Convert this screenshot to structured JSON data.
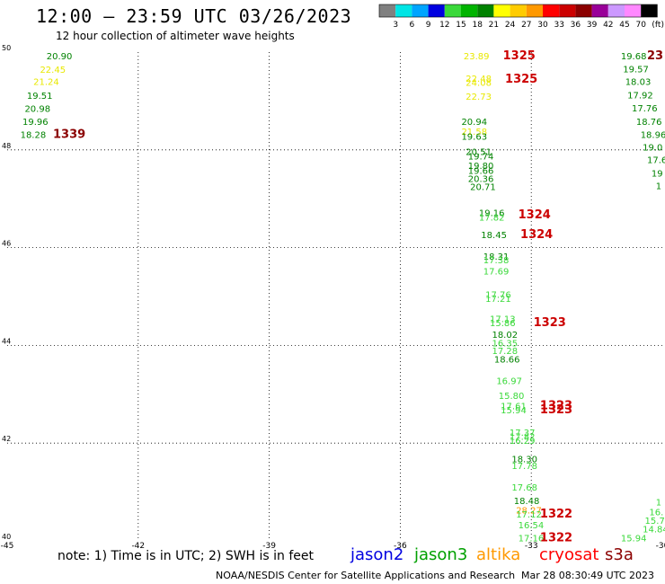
{
  "header": {
    "title": "12:00 — 23:59 UTC 03/26/2023",
    "subtitle": "12 hour collection of altimeter wave heights"
  },
  "colorbar": {
    "unit": "(ft)",
    "ticks": [
      "3",
      "6",
      "9",
      "12",
      "15",
      "18",
      "21",
      "24",
      "27",
      "30",
      "33",
      "36",
      "39",
      "42",
      "45",
      "70"
    ],
    "colors": [
      "#808080",
      "#00e5e5",
      "#00a5ff",
      "#0000e0",
      "#3ad93a",
      "#00b400",
      "#008200",
      "#ffff00",
      "#ffcc00",
      "#ff9900",
      "#ff0000",
      "#cc0000",
      "#8b0000",
      "#990099",
      "#cc99ff",
      "#ff88ff",
      "#000000"
    ]
  },
  "footer": {
    "note": "note:  1) Time is in UTC;  2) SWH is in feet",
    "satellites": [
      {
        "name": "jason2",
        "color": "#0000e0"
      },
      {
        "name": "jason3",
        "color": "#00a000"
      },
      {
        "name": "altika",
        "color": "#ff9900"
      },
      {
        "name": "cryosat",
        "color": "#ff0000"
      },
      {
        "name": "s3a",
        "color": "#8b0000"
      }
    ],
    "credit": "NOAA/NESDIS Center for Satellite Applications and Research",
    "generated": "Mar 28 08:30:49 UTC 2023"
  },
  "chart_data": {
    "type": "scatter",
    "title": "12:00 — 23:59 UTC 03/26/2023",
    "subtitle": "12 hour collection of altimeter wave heights",
    "xlim": [
      -45,
      -30
    ],
    "ylim": [
      40,
      50
    ],
    "x_ticks": [
      "-45",
      "-42",
      "-39",
      "-36",
      "-33",
      "-30"
    ],
    "y_ticks": [
      "50",
      "48",
      "46",
      "44",
      "42",
      "40"
    ],
    "grid": true,
    "points": [
      {
        "lon": -44.1,
        "lat": 49.93,
        "v": "20.90",
        "c": "#008200"
      },
      {
        "lon": -44.25,
        "lat": 49.65,
        "v": "22.45",
        "c": "#e8e800"
      },
      {
        "lon": -44.4,
        "lat": 49.4,
        "v": "21.24",
        "c": "#e8e800"
      },
      {
        "lon": -44.55,
        "lat": 49.12,
        "v": "19.51",
        "c": "#008200"
      },
      {
        "lon": -44.6,
        "lat": 48.85,
        "v": "20.98",
        "c": "#008200"
      },
      {
        "lon": -44.65,
        "lat": 48.58,
        "v": "19.96",
        "c": "#008200"
      },
      {
        "lon": -44.7,
        "lat": 48.32,
        "v": "18.28",
        "c": "#008200"
      },
      {
        "lon": -43.95,
        "lat": 48.32,
        "v": "1339",
        "c": "#8b0000",
        "label": true
      },
      {
        "lon": -34.55,
        "lat": 49.93,
        "v": "23.89",
        "c": "#e8e800"
      },
      {
        "lon": -33.65,
        "lat": 49.93,
        "v": "1325",
        "c": "#cc0000",
        "label": true
      },
      {
        "lon": -34.5,
        "lat": 49.47,
        "v": "22.48",
        "c": "#e8e800"
      },
      {
        "lon": -34.5,
        "lat": 49.38,
        "v": "24.08",
        "c": "#e8e800"
      },
      {
        "lon": -33.6,
        "lat": 49.45,
        "v": "1325",
        "c": "#cc0000",
        "label": true
      },
      {
        "lon": -34.5,
        "lat": 49.1,
        "v": "22.73",
        "c": "#e8e800"
      },
      {
        "lon": -34.6,
        "lat": 48.58,
        "v": "20.94",
        "c": "#008200"
      },
      {
        "lon": -34.6,
        "lat": 48.38,
        "v": "21.58",
        "c": "#e8e800"
      },
      {
        "lon": -34.6,
        "lat": 48.28,
        "v": "19.63",
        "c": "#008200"
      },
      {
        "lon": -34.5,
        "lat": 47.97,
        "v": "20.51",
        "c": "#008200"
      },
      {
        "lon": -34.45,
        "lat": 47.88,
        "v": "19.74",
        "c": "#008200"
      },
      {
        "lon": -34.45,
        "lat": 47.68,
        "v": "19.80",
        "c": "#008200"
      },
      {
        "lon": -34.45,
        "lat": 47.58,
        "v": "19.66",
        "c": "#008200"
      },
      {
        "lon": -34.45,
        "lat": 47.42,
        "v": "20.36",
        "c": "#008200"
      },
      {
        "lon": -34.4,
        "lat": 47.25,
        "v": "20.71",
        "c": "#008200"
      },
      {
        "lon": -34.2,
        "lat": 46.72,
        "v": "19.16",
        "c": "#008200"
      },
      {
        "lon": -34.2,
        "lat": 46.63,
        "v": "17.82",
        "c": "#3ad93a"
      },
      {
        "lon": -33.3,
        "lat": 46.67,
        "v": "1324",
        "c": "#cc0000",
        "label": true
      },
      {
        "lon": -34.15,
        "lat": 46.27,
        "v": "18.45",
        "c": "#008200"
      },
      {
        "lon": -33.25,
        "lat": 46.27,
        "v": "1324",
        "c": "#cc0000",
        "label": true
      },
      {
        "lon": -34.1,
        "lat": 45.83,
        "v": "18.31",
        "c": "#008200"
      },
      {
        "lon": -34.1,
        "lat": 45.75,
        "v": "17.38",
        "c": "#3ad93a"
      },
      {
        "lon": -34.1,
        "lat": 45.52,
        "v": "17.69",
        "c": "#3ad93a"
      },
      {
        "lon": -34.05,
        "lat": 45.05,
        "v": "17.76",
        "c": "#3ad93a"
      },
      {
        "lon": -34.05,
        "lat": 44.96,
        "v": "17.21",
        "c": "#3ad93a"
      },
      {
        "lon": -33.95,
        "lat": 44.55,
        "v": "17.13",
        "c": "#3ad93a"
      },
      {
        "lon": -33.95,
        "lat": 44.47,
        "v": "15.86",
        "c": "#3ad93a"
      },
      {
        "lon": -32.95,
        "lat": 44.47,
        "v": "1323",
        "c": "#cc0000",
        "label": true
      },
      {
        "lon": -33.9,
        "lat": 44.23,
        "v": "18.02",
        "c": "#008200"
      },
      {
        "lon": -33.9,
        "lat": 44.05,
        "v": "16.35",
        "c": "#3ad93a"
      },
      {
        "lon": -33.9,
        "lat": 43.9,
        "v": "17.28",
        "c": "#3ad93a"
      },
      {
        "lon": -33.85,
        "lat": 43.72,
        "v": "18.66",
        "c": "#008200"
      },
      {
        "lon": -33.8,
        "lat": 43.28,
        "v": "16.97",
        "c": "#3ad93a"
      },
      {
        "lon": -33.75,
        "lat": 42.98,
        "v": "15.80",
        "c": "#3ad93a"
      },
      {
        "lon": -33.7,
        "lat": 42.77,
        "v": "17.61",
        "c": "#3ad93a"
      },
      {
        "lon": -32.8,
        "lat": 42.77,
        "v": "1323",
        "c": "#cc0000",
        "label": true
      },
      {
        "lon": -33.7,
        "lat": 42.68,
        "v": "15.94",
        "c": "#3ad93a"
      },
      {
        "lon": -32.8,
        "lat": 42.68,
        "v": "1323",
        "c": "#cc0000",
        "label": true
      },
      {
        "lon": -33.5,
        "lat": 42.22,
        "v": "17.37",
        "c": "#3ad93a"
      },
      {
        "lon": -33.5,
        "lat": 42.14,
        "v": "17.82",
        "c": "#3ad93a"
      },
      {
        "lon": -33.5,
        "lat": 42.06,
        "v": "16.29",
        "c": "#3ad93a"
      },
      {
        "lon": -33.45,
        "lat": 41.68,
        "v": "18.30",
        "c": "#008200"
      },
      {
        "lon": -33.45,
        "lat": 41.54,
        "v": "17.78",
        "c": "#3ad93a"
      },
      {
        "lon": -33.45,
        "lat": 41.1,
        "v": "17.68",
        "c": "#3ad93a"
      },
      {
        "lon": -33.4,
        "lat": 40.83,
        "v": "18.48",
        "c": "#008200"
      },
      {
        "lon": -33.35,
        "lat": 40.63,
        "v": "28.27",
        "c": "#ff9900"
      },
      {
        "lon": -33.35,
        "lat": 40.55,
        "v": "17.12",
        "c": "#3ad93a"
      },
      {
        "lon": -32.8,
        "lat": 40.55,
        "v": "1322",
        "c": "#cc0000",
        "label": true
      },
      {
        "lon": -33.3,
        "lat": 40.33,
        "v": "16.54",
        "c": "#3ad93a"
      },
      {
        "lon": -33.3,
        "lat": 40.06,
        "v": "17.16",
        "c": "#3ad93a"
      },
      {
        "lon": -32.8,
        "lat": 40.06,
        "v": "1322",
        "c": "#cc0000",
        "label": true
      },
      {
        "lon": -30.95,
        "lat": 49.93,
        "v": "19.68",
        "c": "#008200"
      },
      {
        "lon": -30.35,
        "lat": 49.93,
        "v": "23",
        "c": "#8b0000",
        "label": true
      },
      {
        "lon": -30.9,
        "lat": 49.66,
        "v": "19.57",
        "c": "#008200"
      },
      {
        "lon": -30.85,
        "lat": 49.4,
        "v": "18.03",
        "c": "#008200"
      },
      {
        "lon": -30.8,
        "lat": 49.13,
        "v": "17.92",
        "c": "#008200"
      },
      {
        "lon": -30.7,
        "lat": 48.86,
        "v": "17.76",
        "c": "#008200"
      },
      {
        "lon": -30.6,
        "lat": 48.58,
        "v": "18.76",
        "c": "#008200"
      },
      {
        "lon": -30.5,
        "lat": 48.32,
        "v": "18.96",
        "c": "#008200"
      },
      {
        "lon": -30.45,
        "lat": 48.06,
        "v": "19.0",
        "c": "#008200"
      },
      {
        "lon": -30.35,
        "lat": 47.8,
        "v": "17.6",
        "c": "#008200"
      },
      {
        "lon": -30.25,
        "lat": 47.53,
        "v": "19",
        "c": "#008200"
      },
      {
        "lon": -30.15,
        "lat": 47.27,
        "v": "1",
        "c": "#008200"
      },
      {
        "lon": -30.15,
        "lat": 40.8,
        "v": "1",
        "c": "#3ad93a"
      },
      {
        "lon": -30.3,
        "lat": 40.6,
        "v": "16.",
        "c": "#3ad93a"
      },
      {
        "lon": -30.4,
        "lat": 40.42,
        "v": "15.7",
        "c": "#3ad93a"
      },
      {
        "lon": -30.45,
        "lat": 40.25,
        "v": "14.84",
        "c": "#3ad93a"
      },
      {
        "lon": -30.95,
        "lat": 40.06,
        "v": "15.94",
        "c": "#3ad93a"
      }
    ]
  }
}
